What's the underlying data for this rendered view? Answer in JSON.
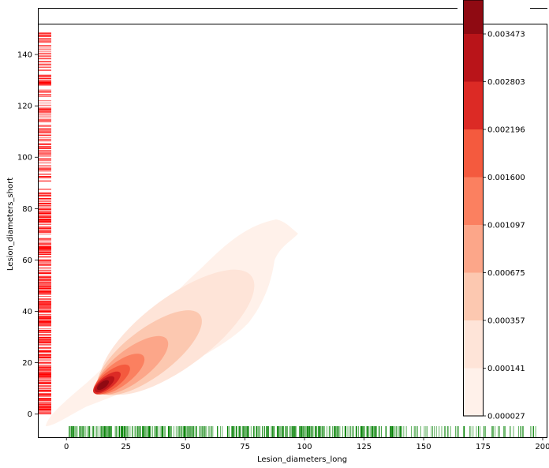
{
  "chart_data": {
    "type": "kde-contour-with-rugs",
    "xlabel": "Lesion_diameters_long",
    "ylabel": "Lesion_diameters_short",
    "xlim": [
      -12,
      202
    ],
    "ylim": [
      -9,
      152
    ],
    "x_ticks": [
      0,
      25,
      50,
      75,
      100,
      125,
      150,
      175,
      200
    ],
    "y_ticks": [
      0,
      20,
      40,
      60,
      80,
      100,
      120,
      140
    ],
    "colorbar": {
      "colormap": "Reds",
      "levels": [
        "0.000027",
        "0.000141",
        "0.000357",
        "0.000675",
        "0.001097",
        "0.001600",
        "0.002196",
        "0.002803",
        "0.003473"
      ],
      "colors": [
        "#fff1ea",
        "#fee4d8",
        "#fcc8b0",
        "#fca689",
        "#fb8060",
        "#f45a3e",
        "#dc2a25",
        "#b91419",
        "#8f0a12"
      ]
    },
    "density_peak": {
      "x": 15,
      "y": 11
    },
    "rug_x_color": "#008000",
    "rug_y_color": "#ff0000",
    "rug_x_range": [
      1,
      198
    ],
    "rug_y_range": [
      0,
      149
    ]
  }
}
